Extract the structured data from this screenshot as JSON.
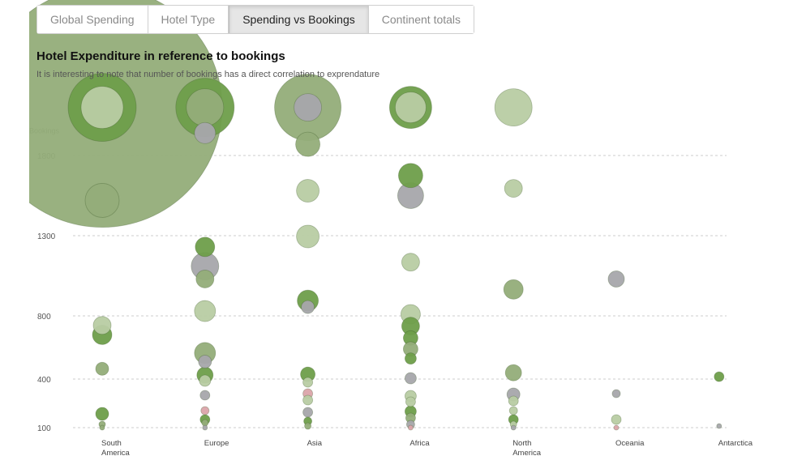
{
  "tabs": [
    {
      "label": "Global Spending",
      "active": false
    },
    {
      "label": "Hotel Type",
      "active": false
    },
    {
      "label": "Spending vs Bookings",
      "active": true
    },
    {
      "label": "Continent totals",
      "active": false
    }
  ],
  "colors": {
    "darkGreen": "#6e9e4a",
    "midGreen": "#93ad79",
    "lightGreen": "#b8cca3",
    "gray": "#a7a7ab",
    "pink": "#dba4aa",
    "grid": "#cccccc"
  },
  "chart_data": {
    "type": "scatter",
    "title": "Hotel Expenditure in reference to bookings",
    "subtitle": "It is interesting to note that number of bookings has a direct correlation to exprendature",
    "ylabel": "Bookings",
    "yticks": [
      100,
      400,
      800,
      1300,
      1800
    ],
    "categories": [
      "South America",
      "Europe",
      "Asia",
      "Africa",
      "North America",
      "Oceania",
      "Antarctica"
    ],
    "category_label_lines": [
      [
        "South",
        "America"
      ],
      [
        "Europe"
      ],
      [
        "Asia"
      ],
      [
        "Africa"
      ],
      [
        "North",
        "America"
      ],
      [
        "Oceania"
      ],
      [
        "Antarctica"
      ]
    ],
    "points": [
      {
        "category": "South America",
        "bookings": 2100,
        "size": 148,
        "color": "midGreen"
      },
      {
        "category": "South America",
        "bookings": 2100,
        "size": 42,
        "color": "darkGreen"
      },
      {
        "category": "South America",
        "bookings": 2100,
        "size": 26,
        "color": "lightGreen"
      },
      {
        "category": "South America",
        "bookings": 1520,
        "size": 21,
        "color": "midGreen"
      },
      {
        "category": "South America",
        "bookings": 740,
        "size": 11,
        "color": "lightGreen"
      },
      {
        "category": "South America",
        "bookings": 680,
        "size": 12,
        "color": "darkGreen"
      },
      {
        "category": "South America",
        "bookings": 465,
        "size": 8,
        "color": "midGreen"
      },
      {
        "category": "South America",
        "bookings": 185,
        "size": 8,
        "color": "darkGreen"
      },
      {
        "category": "South America",
        "bookings": 120,
        "size": 4,
        "color": "midGreen"
      },
      {
        "category": "South America",
        "bookings": 100,
        "size": 3,
        "color": "midGreen"
      },
      {
        "category": "Europe",
        "bookings": 2100,
        "size": 36,
        "color": "darkGreen"
      },
      {
        "category": "Europe",
        "bookings": 2100,
        "size": 23,
        "color": "midGreen"
      },
      {
        "category": "Europe",
        "bookings": 1940,
        "size": 13,
        "color": "gray"
      },
      {
        "category": "Europe",
        "bookings": 1230,
        "size": 12,
        "color": "darkGreen"
      },
      {
        "category": "Europe",
        "bookings": 1110,
        "size": 17,
        "color": "gray"
      },
      {
        "category": "Europe",
        "bookings": 1030,
        "size": 11,
        "color": "midGreen"
      },
      {
        "category": "Europe",
        "bookings": 830,
        "size": 13,
        "color": "lightGreen"
      },
      {
        "category": "Europe",
        "bookings": 565,
        "size": 13,
        "color": "midGreen"
      },
      {
        "category": "Europe",
        "bookings": 510,
        "size": 8,
        "color": "gray"
      },
      {
        "category": "Europe",
        "bookings": 425,
        "size": 10,
        "color": "darkGreen"
      },
      {
        "category": "Europe",
        "bookings": 390,
        "size": 7,
        "color": "lightGreen"
      },
      {
        "category": "Europe",
        "bookings": 300,
        "size": 6,
        "color": "gray"
      },
      {
        "category": "Europe",
        "bookings": 205,
        "size": 5,
        "color": "pink"
      },
      {
        "category": "Europe",
        "bookings": 150,
        "size": 6,
        "color": "darkGreen"
      },
      {
        "category": "Europe",
        "bookings": 130,
        "size": 4,
        "color": "midGreen"
      },
      {
        "category": "Europe",
        "bookings": 100,
        "size": 3,
        "color": "gray"
      },
      {
        "category": "Asia",
        "bookings": 2100,
        "size": 41,
        "color": "midGreen"
      },
      {
        "category": "Asia",
        "bookings": 2100,
        "size": 17,
        "color": "gray"
      },
      {
        "category": "Asia",
        "bookings": 1870,
        "size": 15,
        "color": "midGreen"
      },
      {
        "category": "Asia",
        "bookings": 1580,
        "size": 14,
        "color": "lightGreen"
      },
      {
        "category": "Asia",
        "bookings": 1295,
        "size": 14,
        "color": "lightGreen"
      },
      {
        "category": "Asia",
        "bookings": 895,
        "size": 13,
        "color": "darkGreen"
      },
      {
        "category": "Asia",
        "bookings": 855,
        "size": 8,
        "color": "gray"
      },
      {
        "category": "Asia",
        "bookings": 430,
        "size": 9,
        "color": "darkGreen"
      },
      {
        "category": "Asia",
        "bookings": 380,
        "size": 6,
        "color": "lightGreen"
      },
      {
        "category": "Asia",
        "bookings": 310,
        "size": 6,
        "color": "pink"
      },
      {
        "category": "Asia",
        "bookings": 270,
        "size": 6,
        "color": "lightGreen"
      },
      {
        "category": "Asia",
        "bookings": 195,
        "size": 6,
        "color": "gray"
      },
      {
        "category": "Asia",
        "bookings": 140,
        "size": 5,
        "color": "darkGreen"
      },
      {
        "category": "Asia",
        "bookings": 110,
        "size": 4,
        "color": "midGreen"
      },
      {
        "category": "Africa",
        "bookings": 2100,
        "size": 26,
        "color": "darkGreen"
      },
      {
        "category": "Africa",
        "bookings": 2100,
        "size": 19,
        "color": "lightGreen"
      },
      {
        "category": "Africa",
        "bookings": 1675,
        "size": 15,
        "color": "darkGreen"
      },
      {
        "category": "Africa",
        "bookings": 1550,
        "size": 16,
        "color": "gray"
      },
      {
        "category": "Africa",
        "bookings": 1135,
        "size": 11,
        "color": "lightGreen"
      },
      {
        "category": "Africa",
        "bookings": 810,
        "size": 12,
        "color": "lightGreen"
      },
      {
        "category": "Africa",
        "bookings": 735,
        "size": 11,
        "color": "darkGreen"
      },
      {
        "category": "Africa",
        "bookings": 660,
        "size": 9,
        "color": "darkGreen"
      },
      {
        "category": "Africa",
        "bookings": 590,
        "size": 9,
        "color": "midGreen"
      },
      {
        "category": "Africa",
        "bookings": 530,
        "size": 7,
        "color": "darkGreen"
      },
      {
        "category": "Africa",
        "bookings": 405,
        "size": 7,
        "color": "gray"
      },
      {
        "category": "Africa",
        "bookings": 295,
        "size": 7,
        "color": "lightGreen"
      },
      {
        "category": "Africa",
        "bookings": 260,
        "size": 6,
        "color": "lightGreen"
      },
      {
        "category": "Africa",
        "bookings": 200,
        "size": 7,
        "color": "darkGreen"
      },
      {
        "category": "Africa",
        "bookings": 160,
        "size": 6,
        "color": "midGreen"
      },
      {
        "category": "Africa",
        "bookings": 120,
        "size": 5,
        "color": "gray"
      },
      {
        "category": "Africa",
        "bookings": 100,
        "size": 3,
        "color": "pink"
      },
      {
        "category": "North America",
        "bookings": 2100,
        "size": 23,
        "color": "lightGreen"
      },
      {
        "category": "North America",
        "bookings": 1595,
        "size": 11,
        "color": "lightGreen"
      },
      {
        "category": "North America",
        "bookings": 965,
        "size": 12,
        "color": "midGreen"
      },
      {
        "category": "North America",
        "bookings": 440,
        "size": 10,
        "color": "midGreen"
      },
      {
        "category": "North America",
        "bookings": 305,
        "size": 8,
        "color": "gray"
      },
      {
        "category": "North America",
        "bookings": 265,
        "size": 6,
        "color": "lightGreen"
      },
      {
        "category": "North America",
        "bookings": 205,
        "size": 5,
        "color": "lightGreen"
      },
      {
        "category": "North America",
        "bookings": 150,
        "size": 6,
        "color": "darkGreen"
      },
      {
        "category": "North America",
        "bookings": 120,
        "size": 4,
        "color": "lightGreen"
      },
      {
        "category": "North America",
        "bookings": 100,
        "size": 3,
        "color": "gray"
      },
      {
        "category": "Oceania",
        "bookings": 1030,
        "size": 10,
        "color": "gray"
      },
      {
        "category": "Oceania",
        "bookings": 310,
        "size": 5,
        "color": "gray"
      },
      {
        "category": "Oceania",
        "bookings": 150,
        "size": 6,
        "color": "lightGreen"
      },
      {
        "category": "Oceania",
        "bookings": 100,
        "size": 3,
        "color": "pink"
      },
      {
        "category": "Antarctica",
        "bookings": 415,
        "size": 6,
        "color": "darkGreen"
      },
      {
        "category": "Antarctica",
        "bookings": 110,
        "size": 3,
        "color": "gray"
      }
    ]
  }
}
